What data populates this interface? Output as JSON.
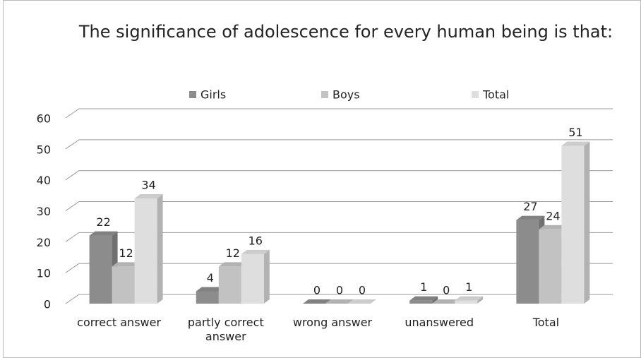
{
  "chart_data": {
    "type": "bar3d",
    "title": "The significance of adolescence for every human being is that:",
    "categories": [
      "correct answer",
      "partly correct answer",
      "wrong answer",
      "unanswered",
      "Total"
    ],
    "series": [
      {
        "name": "Girls",
        "color": "#8c8c8c",
        "values": [
          22,
          4,
          0,
          1,
          27
        ]
      },
      {
        "name": "Boys",
        "color": "#c2c2c2",
        "values": [
          12,
          12,
          0,
          0,
          24
        ]
      },
      {
        "name": "Total",
        "color": "#dedede",
        "values": [
          34,
          16,
          0,
          1,
          51
        ]
      }
    ],
    "ylim": [
      0,
      60
    ],
    "yticks": [
      0,
      10,
      20,
      30,
      40,
      50,
      60
    ],
    "grid": true,
    "legend": "top"
  }
}
